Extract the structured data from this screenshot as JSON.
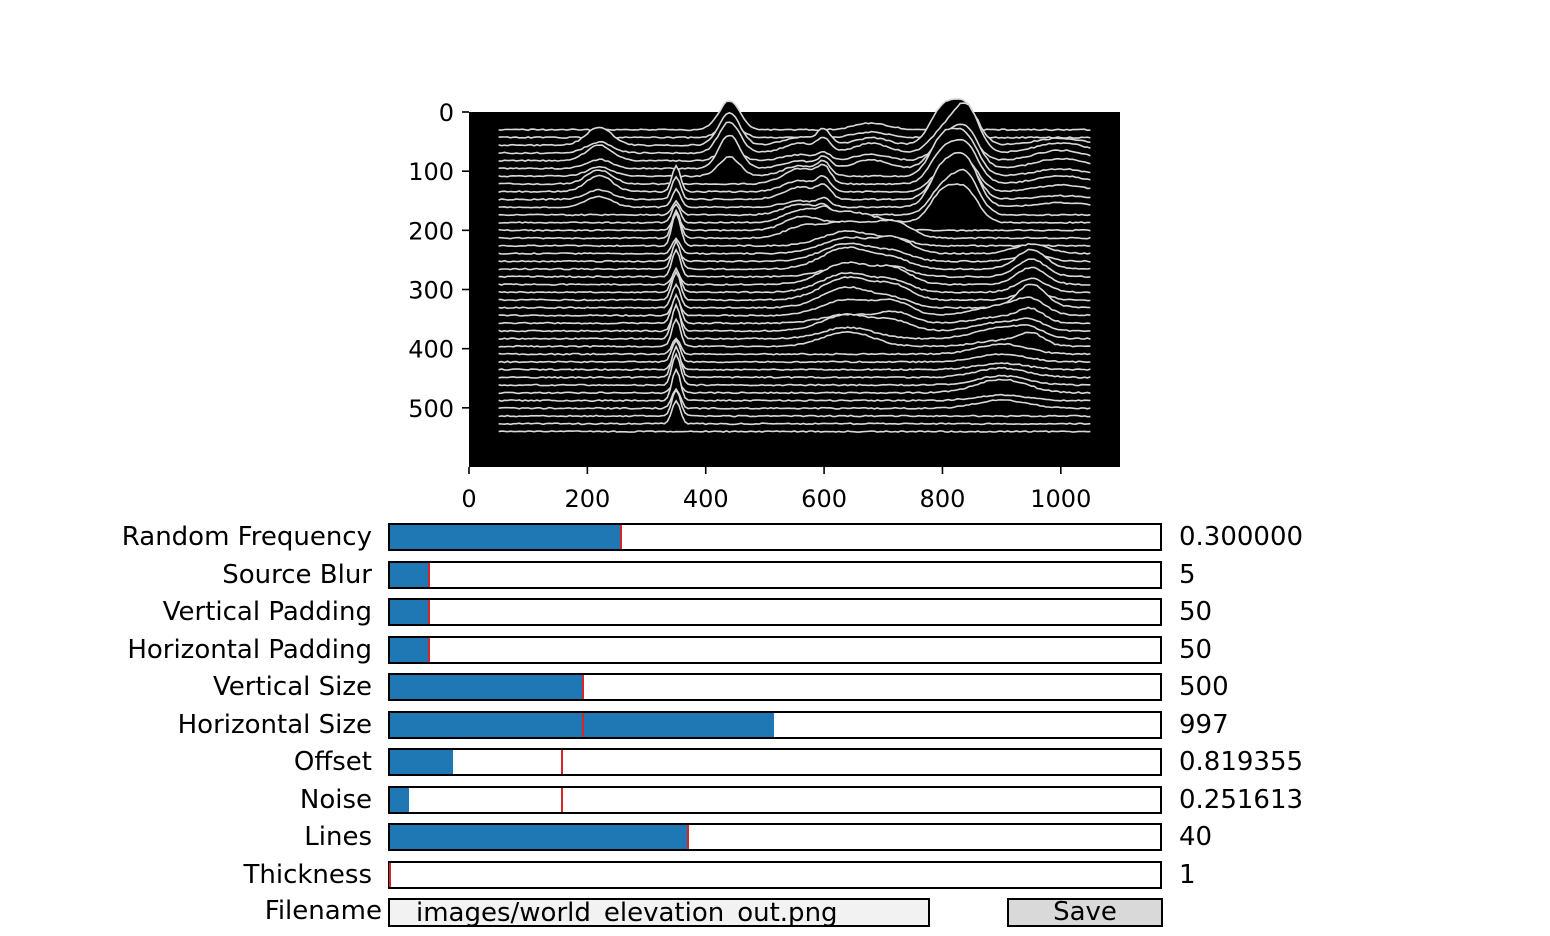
{
  "plot": {
    "background": "#000000",
    "line_color": "#d8d8d8",
    "x_ticks": [
      "0",
      "200",
      "400",
      "600",
      "800",
      "1000"
    ],
    "y_ticks": [
      "0",
      "100",
      "200",
      "300",
      "400",
      "500"
    ]
  },
  "colors": {
    "slider_fill": "#1f77b4",
    "slider_initial_marker": "#d62728"
  },
  "sliders": [
    {
      "label": "Random Frequency",
      "value": "0.300000",
      "fill": 0.3,
      "initial": 0.3
    },
    {
      "label": "Source Blur",
      "value": "5",
      "fill": 0.05,
      "initial": 0.05
    },
    {
      "label": "Vertical Padding",
      "value": "50",
      "fill": 0.05,
      "initial": 0.05
    },
    {
      "label": "Horizontal Padding",
      "value": "50",
      "fill": 0.05,
      "initial": 0.05
    },
    {
      "label": "Vertical Size",
      "value": "500",
      "fill": 0.25,
      "initial": 0.25
    },
    {
      "label": "Horizontal Size",
      "value": "997",
      "fill": 0.499,
      "initial": 0.25
    },
    {
      "label": "Offset",
      "value": "0.819355",
      "fill": 0.082,
      "initial": 0.223
    },
    {
      "label": "Noise",
      "value": "0.251613",
      "fill": 0.025,
      "initial": 0.223
    },
    {
      "label": "Lines",
      "value": "40",
      "fill": 0.387,
      "initial": 0.387
    },
    {
      "label": "Thickness",
      "value": "1",
      "fill": 0.0,
      "initial": 0.0
    }
  ],
  "filename": {
    "label": "Filename",
    "value": "images/world_elevation_out.png"
  },
  "save_label": "Save"
}
